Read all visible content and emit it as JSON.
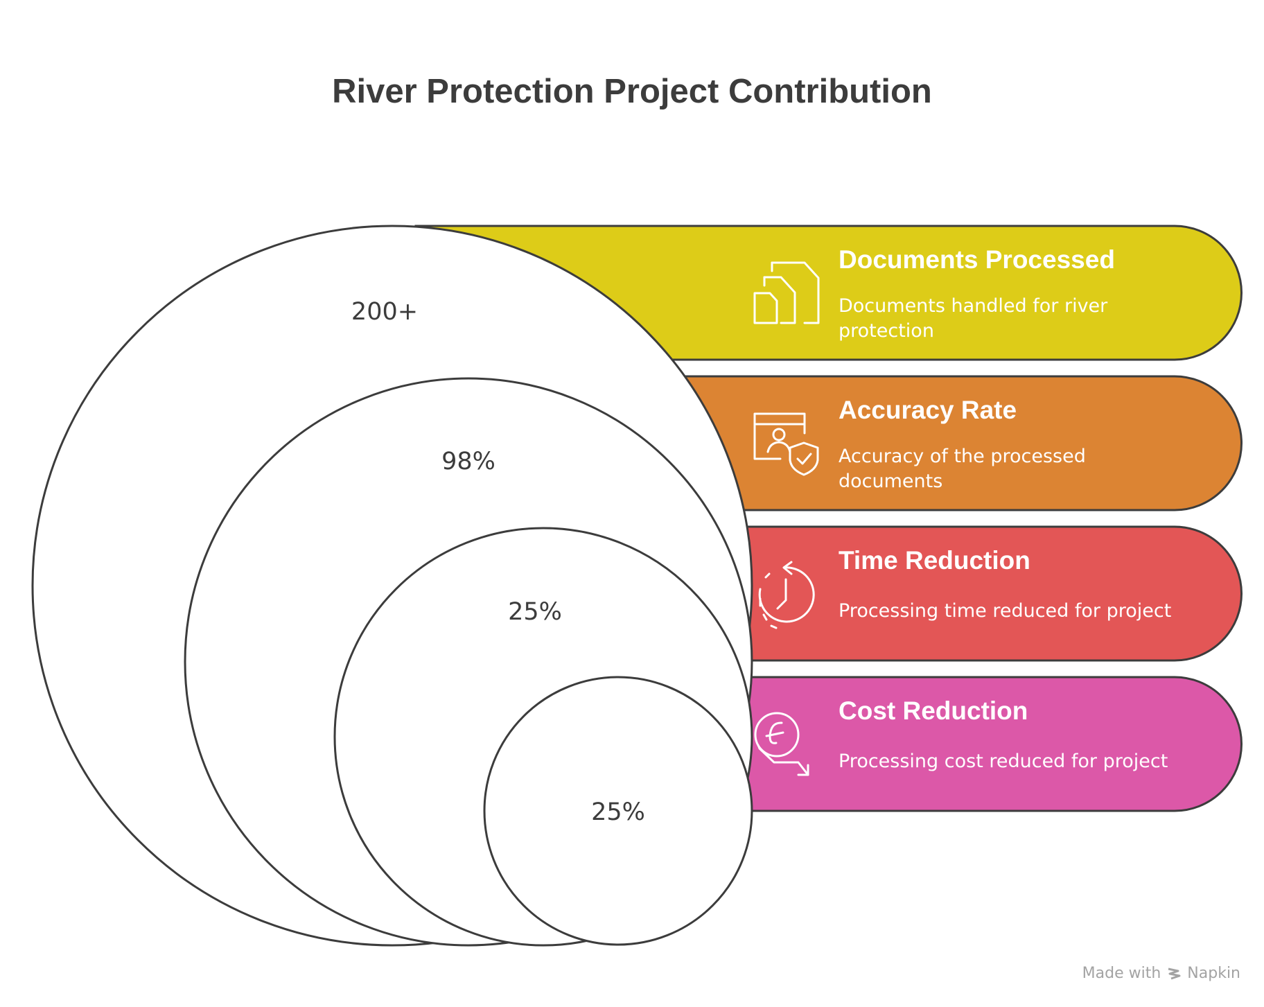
{
  "title": "River Protection Project Contribution",
  "colors": {
    "background": "#ffffff",
    "outline": "#3c3c3c",
    "documents": "#ddcc18",
    "accuracy": "#dc8433",
    "time": "#e35656",
    "cost": "#dc58a8",
    "label_text": "#ffffff",
    "value_text": "#3c3c3c"
  },
  "items": [
    {
      "value": "200+",
      "heading": "Documents Processed",
      "description_lines": [
        "Documents handled for river",
        "protection"
      ],
      "icon": "documents-icon",
      "color": "#ddcc18"
    },
    {
      "value": "98%",
      "heading": "Accuracy Rate",
      "description_lines": [
        "Accuracy of the processed",
        "documents"
      ],
      "icon": "shield-user-icon",
      "color": "#dc8433"
    },
    {
      "value": "25%",
      "heading": "Time Reduction",
      "description_lines": [
        "Processing time reduced for project"
      ],
      "icon": "clock-reduction-icon",
      "color": "#e35656"
    },
    {
      "value": "25%",
      "heading": "Cost Reduction",
      "description_lines": [
        "Processing cost reduced for project"
      ],
      "icon": "cost-reduction-icon",
      "color": "#dc58a8"
    }
  ],
  "footer": {
    "made_with": "Made with",
    "brand": "Napkin"
  }
}
